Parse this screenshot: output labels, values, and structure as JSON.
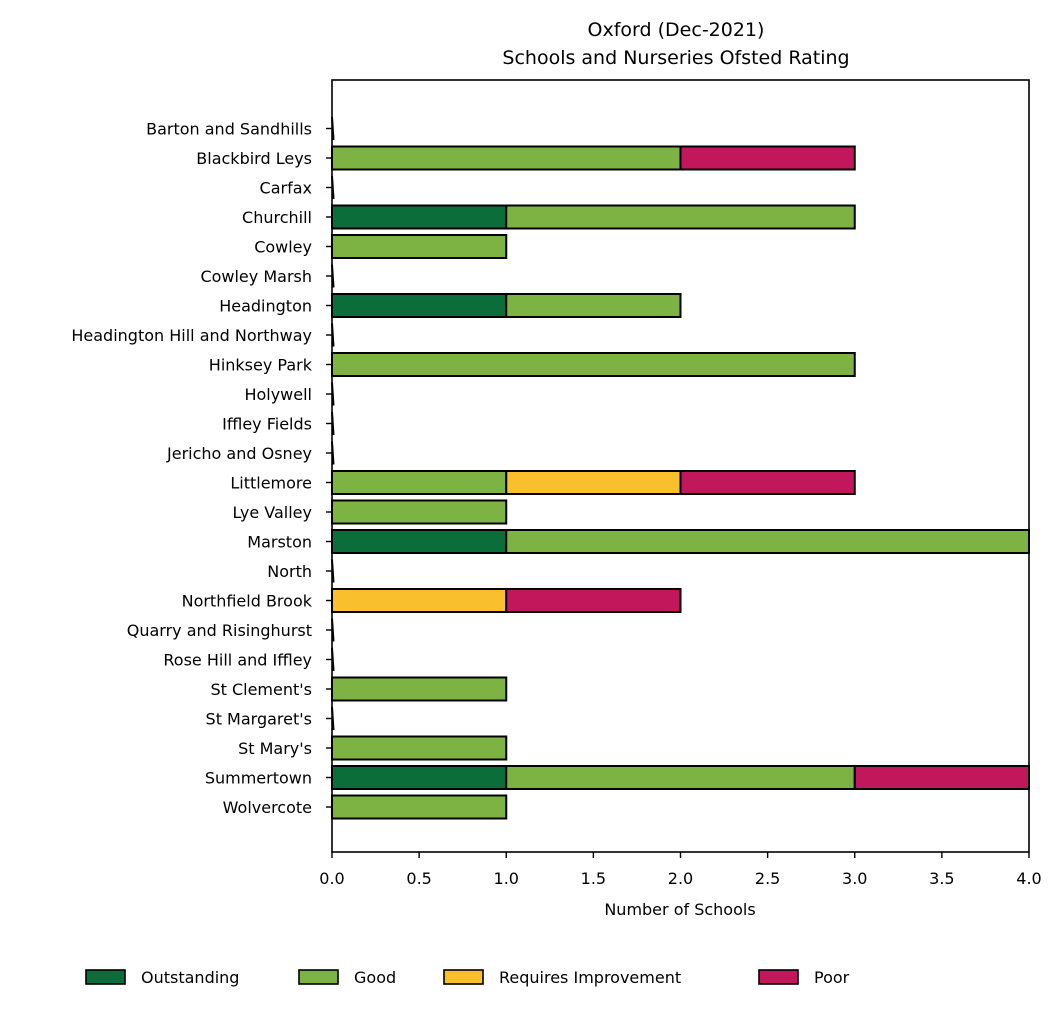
{
  "chart_data": {
    "type": "bar",
    "orientation": "horizontal",
    "stacked": true,
    "title": "Oxford (Dec-2021)",
    "subtitle": "Schools and Nurseries Ofsted Rating",
    "xlabel": "Number of Schools",
    "ylabel": "",
    "xlim": [
      0,
      4
    ],
    "xticks": [
      "0.0",
      "0.5",
      "1.0",
      "1.5",
      "2.0",
      "2.5",
      "3.0",
      "3.5",
      "4.0"
    ],
    "grid": false,
    "legend_position": "bottom",
    "categories": [
      "Barton and Sandhills",
      "Blackbird Leys",
      "Carfax",
      "Churchill",
      "Cowley",
      "Cowley Marsh",
      "Headington",
      "Headington Hill and Northway",
      "Hinksey Park",
      "Holywell",
      "Iffley Fields",
      "Jericho and Osney",
      "Littlemore",
      "Lye Valley",
      "Marston",
      "North",
      "Northfield Brook",
      "Quarry and Risinghurst",
      "Rose Hill and Iffley",
      "St Clement's",
      "St Margaret's",
      "St Mary's",
      "Summertown",
      "Wolvercote"
    ],
    "series": [
      {
        "name": "Outstanding",
        "color": "#0b6e3a",
        "values": [
          0,
          0,
          0,
          1,
          0,
          0,
          1,
          0,
          0,
          0,
          0,
          0,
          0,
          0,
          1,
          0,
          0,
          0,
          0,
          0,
          0,
          0,
          1,
          0
        ]
      },
      {
        "name": "Good",
        "color": "#7cb342",
        "values": [
          0,
          2,
          0,
          2,
          1,
          0,
          1,
          0,
          3,
          0,
          0,
          0,
          1,
          1,
          3,
          0,
          0,
          0,
          0,
          1,
          0,
          1,
          2,
          1
        ]
      },
      {
        "name": "Requires Improvement",
        "color": "#f9bf2c",
        "values": [
          0,
          0,
          0,
          0,
          0,
          0,
          0,
          0,
          0,
          0,
          0,
          0,
          1,
          0,
          0,
          0,
          1,
          0,
          0,
          0,
          0,
          0,
          0,
          0
        ]
      },
      {
        "name": "Poor",
        "color": "#c2185b",
        "values": [
          0,
          1,
          0,
          0,
          0,
          0,
          0,
          0,
          0,
          0,
          0,
          0,
          1,
          0,
          0,
          0,
          1,
          0,
          0,
          0,
          0,
          0,
          1,
          0
        ]
      }
    ]
  }
}
